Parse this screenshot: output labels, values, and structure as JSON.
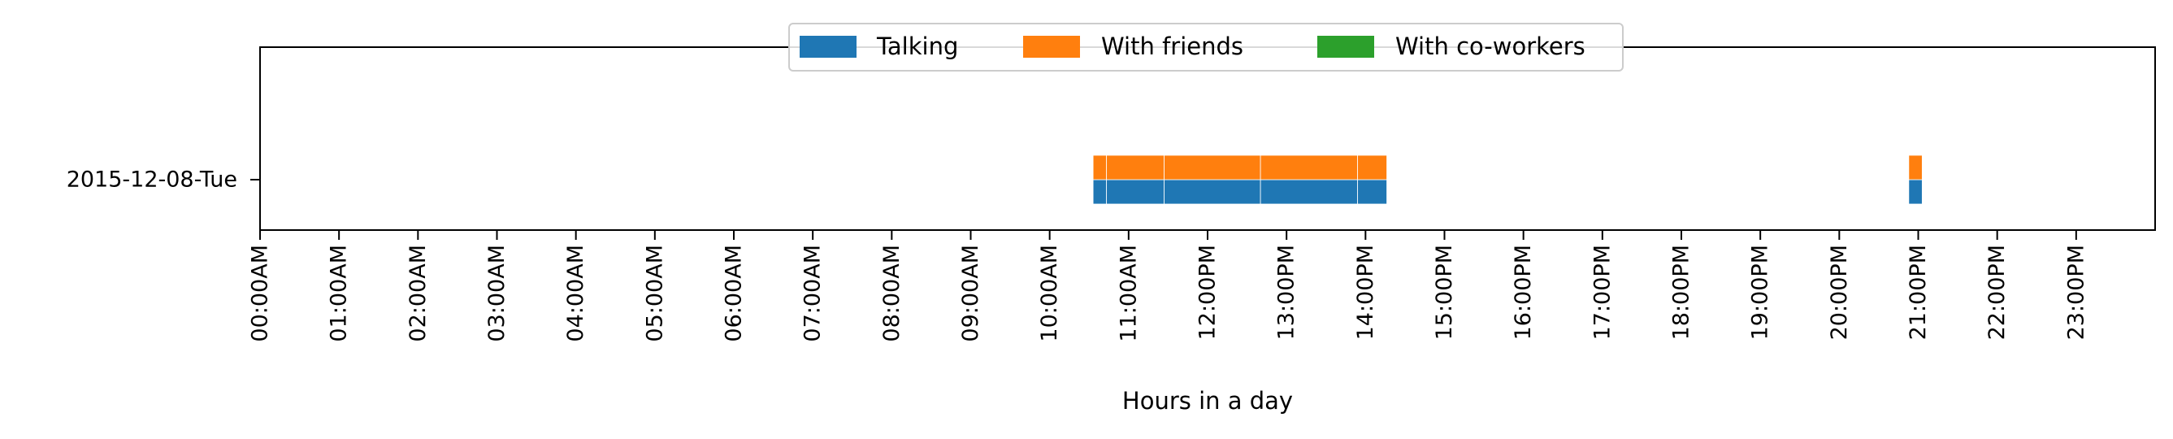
{
  "chart_data": {
    "type": "bar",
    "orientation": "horizontal",
    "title": "",
    "xlabel": "Hours in a day",
    "ylabel": "",
    "xlim": [
      0,
      24
    ],
    "grid": false,
    "legend_position": "top-center",
    "categories": [
      "2015-12-08-Tue"
    ],
    "x_ticks": [
      0,
      1,
      2,
      3,
      4,
      5,
      6,
      7,
      8,
      9,
      10,
      11,
      12,
      13,
      14,
      15,
      16,
      17,
      18,
      19,
      20,
      21,
      22,
      23
    ],
    "x_tick_labels": [
      "00:00AM",
      "01:00AM",
      "02:00AM",
      "03:00AM",
      "04:00AM",
      "05:00AM",
      "06:00AM",
      "07:00AM",
      "08:00AM",
      "09:00AM",
      "10:00AM",
      "11:00AM",
      "12:00PM",
      "13:00PM",
      "14:00PM",
      "15:00PM",
      "16:00PM",
      "17:00PM",
      "18:00PM",
      "19:00PM",
      "20:00PM",
      "21:00PM",
      "22:00PM",
      "23:00PM"
    ],
    "series": [
      {
        "name": "Talking",
        "color": "#1f77b4",
        "intervals": [
          [
            10.55,
            10.72
          ],
          [
            10.72,
            11.45
          ],
          [
            11.45,
            12.67
          ],
          [
            12.67,
            13.9
          ],
          [
            13.9,
            14.27
          ],
          [
            20.88,
            21.05
          ]
        ]
      },
      {
        "name": "With friends",
        "color": "#ff7f0e",
        "intervals": [
          [
            10.55,
            10.72
          ],
          [
            10.72,
            11.45
          ],
          [
            11.45,
            12.67
          ],
          [
            12.67,
            13.9
          ],
          [
            13.9,
            14.27
          ],
          [
            20.88,
            21.05
          ]
        ]
      },
      {
        "name": "With co-workers",
        "color": "#2ca02c",
        "intervals": []
      }
    ]
  }
}
